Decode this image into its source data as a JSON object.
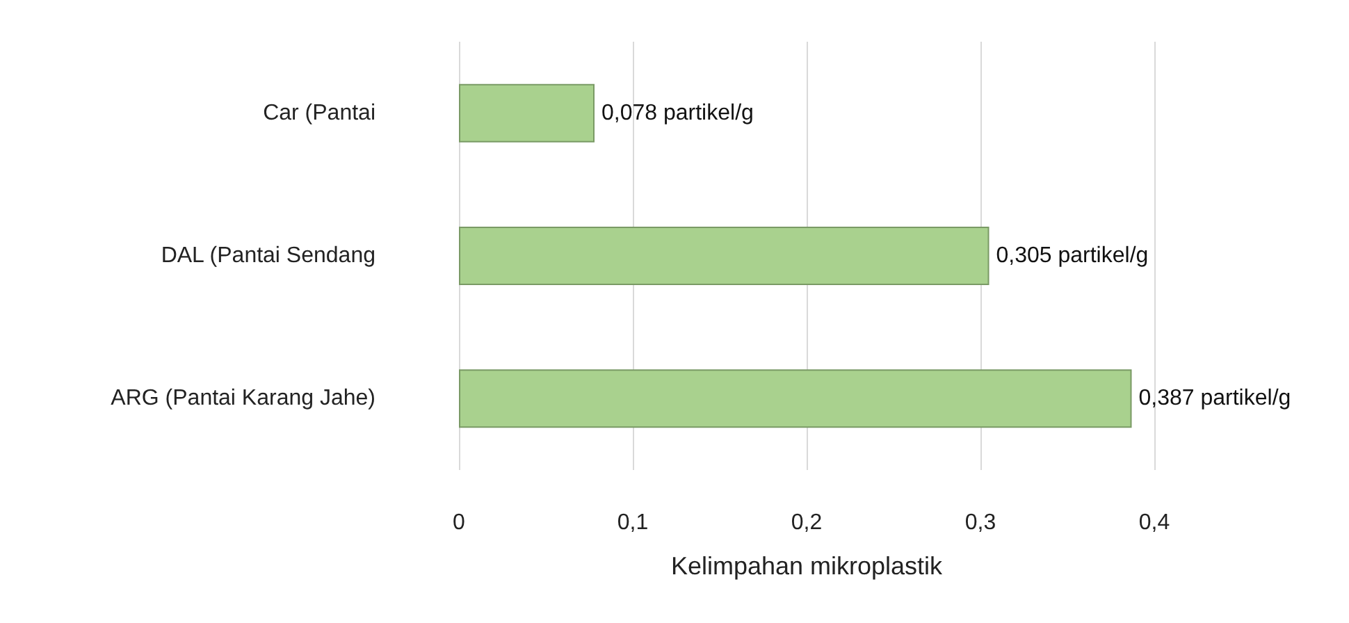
{
  "chart_data": {
    "type": "bar",
    "orientation": "horizontal",
    "categories": [
      "Car (Pantai",
      "DAL (Pantai Sendang",
      "ARG (Pantai Karang Jahe)"
    ],
    "values": [
      0.078,
      0.305,
      0.387
    ],
    "color": "#a9d18e",
    "value_labels": [
      "0,078 partikel/g",
      "0,305 partikel/g",
      "0,387 partikel/g"
    ],
    "xlabel": "Kelimpahan mikroplastik",
    "xlim": [
      0,
      0.4
    ],
    "xticks": [
      0,
      {
        "value": 0.1,
        "label": "0,1"
      },
      {
        "value": 0.2,
        "label": "0,2"
      },
      {
        "value": 0.3,
        "label": "0,3"
      },
      {
        "value": 0.4,
        "label": "0,4"
      }
    ],
    "grid": "x"
  }
}
